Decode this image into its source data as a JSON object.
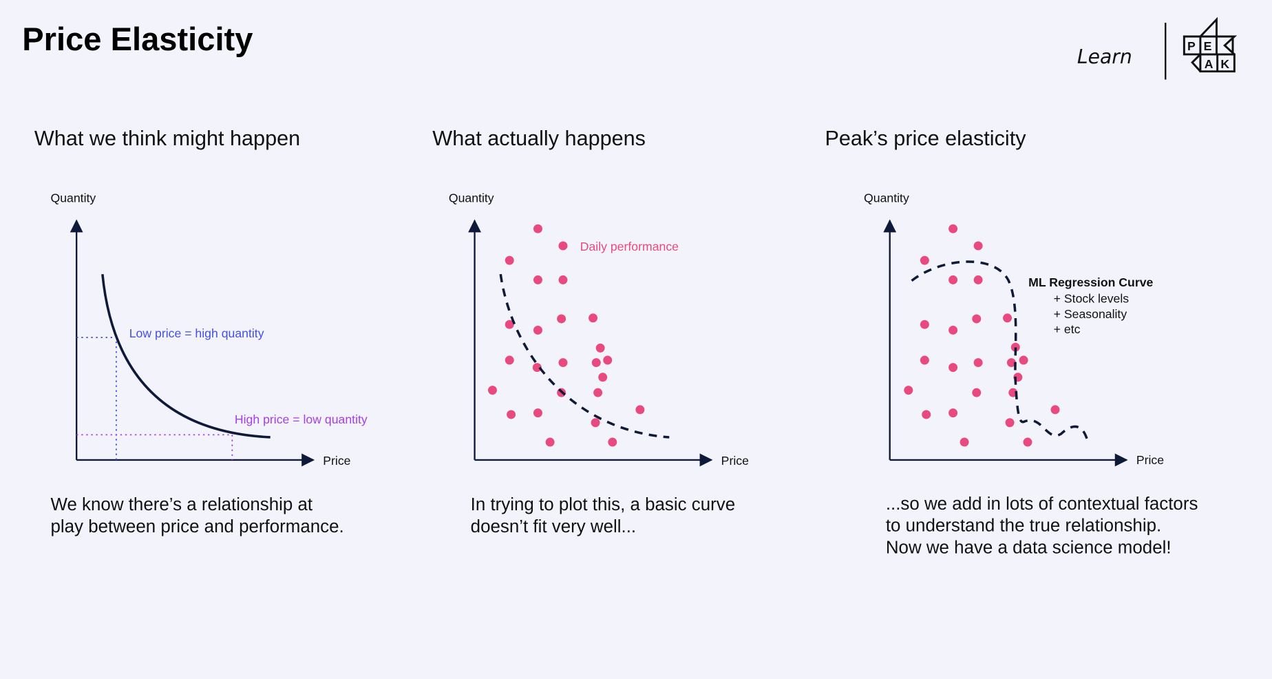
{
  "header": {
    "title": "Price Elasticity",
    "learn_label": "Learn",
    "logo_text": "PEAK"
  },
  "colors": {
    "dot": "#e84a7f",
    "curve": "#0f1a3a",
    "blue": "#4450e0",
    "purple": "#a43ee6",
    "legend": "#e84a7f"
  },
  "panels": [
    {
      "heading": "What we think might happen",
      "ylabel": "Quantity",
      "xlabel": "Price",
      "note_low": "Low price = high quantity",
      "note_high": "High price = low quantity",
      "caption": [
        "We know there’s a relationship at",
        "play between price and performance."
      ]
    },
    {
      "heading": "What actually happens",
      "ylabel": "Quantity",
      "xlabel": "Price",
      "legend": "Daily performance",
      "caption": [
        "In trying to plot this, a basic curve",
        "doesn’t fit very well..."
      ]
    },
    {
      "heading": "Peak’s price elasticity",
      "ylabel": "Quantity",
      "xlabel": "Price",
      "model_title": "ML Regression Curve",
      "factors": [
        "+  Stock levels",
        "+  Seasonality",
        "+  etc"
      ],
      "caption": [
        "...so we add in lots of contextual factors",
        "to understand the true relationship.",
        "Now we have a data science model!"
      ]
    }
  ],
  "chart_data": [
    {
      "type": "line",
      "title": "What we think might happen",
      "xlabel": "Price",
      "ylabel": "Quantity",
      "series": [
        {
          "name": "demand curve",
          "shape": "decreasing convex"
        }
      ]
    },
    {
      "type": "scatter",
      "title": "What actually happens",
      "xlabel": "Price",
      "ylabel": "Quantity",
      "points": [
        [
          78,
          285
        ],
        [
          43,
          246
        ],
        [
          78,
          222
        ],
        [
          109,
          222
        ],
        [
          43,
          167
        ],
        [
          78,
          160
        ],
        [
          107,
          174
        ],
        [
          146,
          175
        ],
        [
          155,
          138
        ],
        [
          43,
          123
        ],
        [
          77,
          114
        ],
        [
          109,
          120
        ],
        [
          150,
          120
        ],
        [
          164,
          123
        ],
        [
          158,
          102
        ],
        [
          22,
          86
        ],
        [
          107,
          83
        ],
        [
          152,
          83
        ],
        [
          45,
          56
        ],
        [
          78,
          58
        ],
        [
          149,
          46
        ],
        [
          204,
          62
        ],
        [
          93,
          22
        ],
        [
          170,
          22
        ]
      ]
    },
    {
      "type": "scatter",
      "title": "Peak’s price elasticity",
      "xlabel": "Price",
      "ylabel": "Quantity",
      "points": [
        [
          78,
          285
        ],
        [
          109,
          264
        ],
        [
          43,
          246
        ],
        [
          78,
          222
        ],
        [
          109,
          222
        ],
        [
          43,
          167
        ],
        [
          78,
          160
        ],
        [
          107,
          174
        ],
        [
          145,
          175
        ],
        [
          155,
          139
        ],
        [
          43,
          123
        ],
        [
          78,
          114
        ],
        [
          109,
          120
        ],
        [
          150,
          120
        ],
        [
          165,
          123
        ],
        [
          158,
          102
        ],
        [
          23,
          86
        ],
        [
          107,
          83
        ],
        [
          152,
          83
        ],
        [
          45,
          56
        ],
        [
          78,
          58
        ],
        [
          148,
          46
        ],
        [
          204,
          62
        ],
        [
          92,
          22
        ],
        [
          170,
          22
        ]
      ]
    }
  ]
}
